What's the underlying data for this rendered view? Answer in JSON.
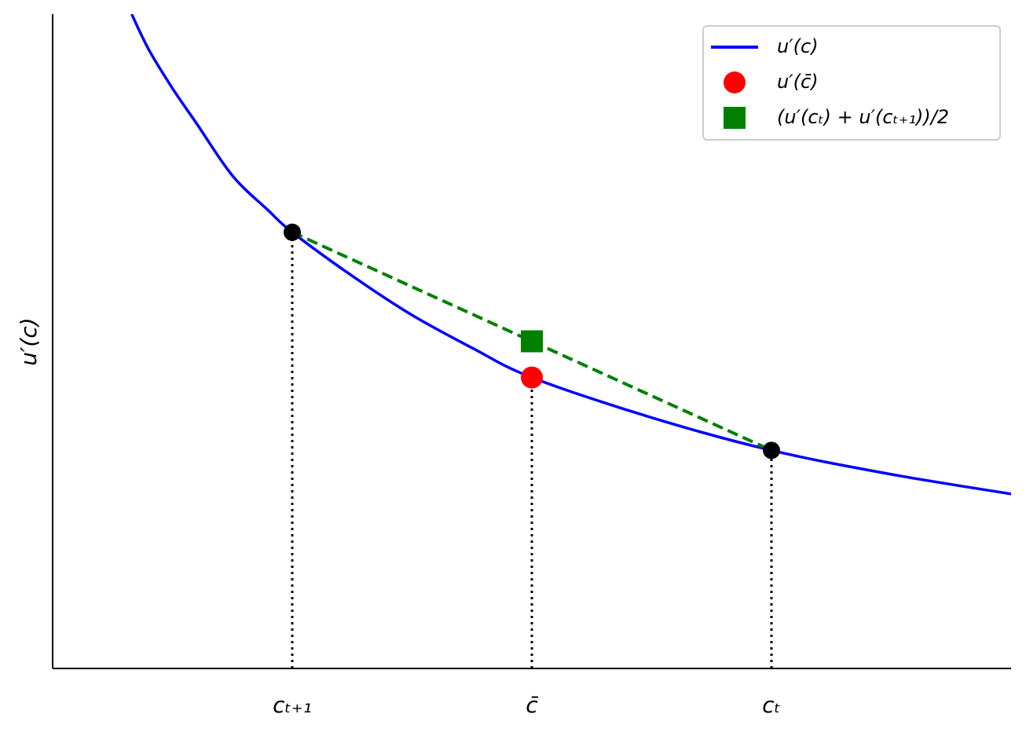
{
  "chart_data": {
    "type": "line",
    "ylabel": "u′(c)",
    "xlim": [
      0,
      4
    ],
    "ylim": [
      0,
      1.5
    ],
    "xticks": [
      {
        "value": 1,
        "label": "cₜ₊₁"
      },
      {
        "value": 2,
        "label": "c̄"
      },
      {
        "value": 3,
        "label": "cₜ"
      }
    ],
    "legend": "upper right",
    "series": [
      {
        "name": "u′(c)",
        "color": "#0000ff",
        "x": [
          0.33,
          0.4,
          0.5,
          0.6,
          0.75,
          0.9,
          1,
          1.25,
          1.5,
          1.75,
          2,
          2.5,
          3,
          3.5,
          4
        ],
        "values": [
          1.5,
          1.42,
          1.33,
          1.25,
          1.13,
          1.05,
          1.0,
          0.9,
          0.81,
          0.735,
          0.667,
          0.575,
          0.5,
          0.445,
          0.4
        ]
      }
    ],
    "points": [
      {
        "name": "u′(c̄)",
        "color": "#ff0000",
        "marker": "circle",
        "x": [
          2
        ],
        "values": [
          0.667
        ]
      },
      {
        "name": "(u′(cₜ) + u′(cₜ₊₁))/2",
        "color": "#008000",
        "marker": "square",
        "x": [
          2
        ],
        "values": [
          0.75
        ]
      }
    ],
    "endpoints": {
      "color": "#000000",
      "x": [
        1,
        3
      ],
      "values": [
        1.0,
        0.5
      ]
    },
    "chord": {
      "color": "#008000",
      "x": [
        1,
        3
      ],
      "values": [
        1.0,
        0.5
      ]
    }
  }
}
